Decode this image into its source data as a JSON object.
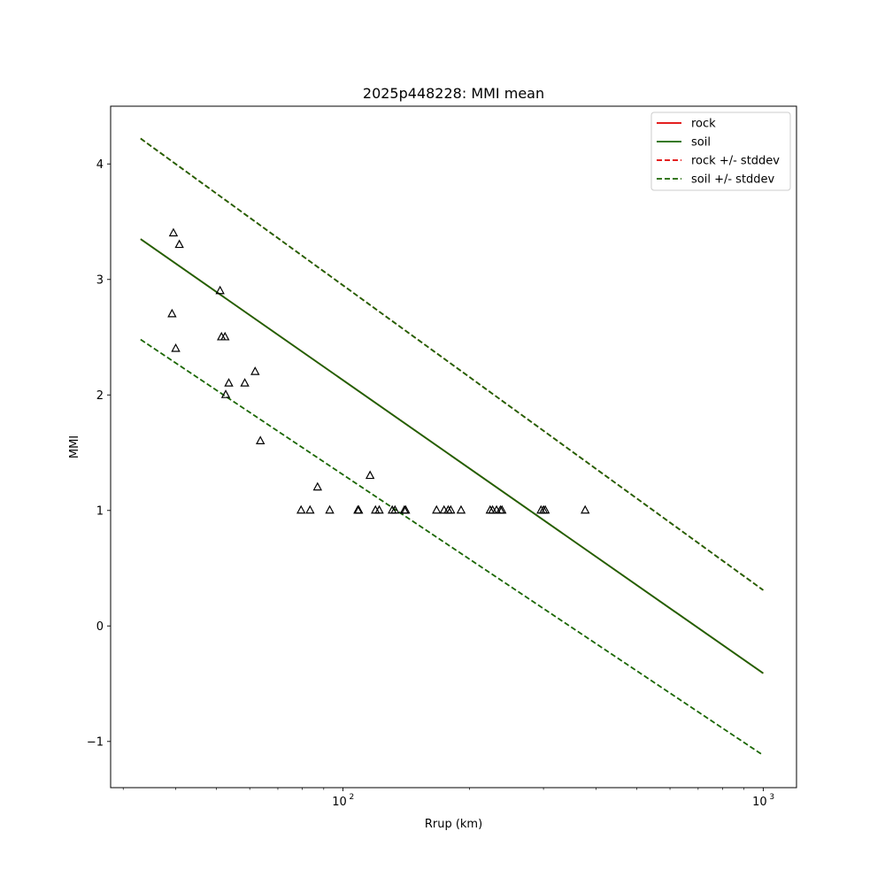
{
  "chart_data": {
    "type": "scatter",
    "title": "2025p448228: MMI mean",
    "xlabel": "Rrup (km)",
    "ylabel": "MMI",
    "xscale": "log",
    "xlim": [
      28,
      1200
    ],
    "ylim": [
      -1.4,
      4.5
    ],
    "grid": false,
    "legend_position": "top-right",
    "xticks": [
      {
        "value": 100,
        "base": "10",
        "exp": "2"
      },
      {
        "value": 1000,
        "base": "10",
        "exp": "3"
      }
    ],
    "yticks": [
      {
        "value": -1,
        "label": "−1"
      },
      {
        "value": 0,
        "label": "0"
      },
      {
        "value": 1,
        "label": "1"
      },
      {
        "value": 2,
        "label": "2"
      },
      {
        "value": 3,
        "label": "3"
      },
      {
        "value": 4,
        "label": "4"
      }
    ],
    "lines": [
      {
        "name": "rock",
        "color": "#e00000",
        "dashed": false,
        "x": [
          33,
          1000
        ],
        "y": [
          3.35,
          -0.41
        ]
      },
      {
        "name": "soil",
        "color": "#1a6600",
        "dashed": false,
        "x": [
          33,
          1000
        ],
        "y": [
          3.35,
          -0.41
        ]
      },
      {
        "name": "rock +/- stddev",
        "color": "#e00000",
        "dashed": true,
        "x": [
          33,
          1000
        ],
        "y": [
          4.22,
          0.31
        ]
      },
      {
        "name": "soil +/- stddev",
        "color": "#1a6600",
        "dashed": true,
        "x": [
          33,
          1000
        ],
        "y": [
          4.22,
          0.31
        ]
      },
      {
        "name": "soil +/- stddev lower",
        "color": "#1a6600",
        "dashed": true,
        "x": [
          33,
          1000
        ],
        "y": [
          2.48,
          -1.12
        ]
      }
    ],
    "legend": [
      {
        "label": "rock",
        "color": "#e00000",
        "dashed": false
      },
      {
        "label": "soil",
        "color": "#1a6600",
        "dashed": false
      },
      {
        "label": "rock +/- stddev",
        "color": "#e00000",
        "dashed": true
      },
      {
        "label": "soil +/- stddev",
        "color": "#1a6600",
        "dashed": true
      }
    ],
    "observations": {
      "marker": "triangle",
      "x": [
        39.5,
        40.8,
        39.2,
        40.0,
        51.0,
        51.4,
        52.4,
        52.6,
        53.5,
        58.4,
        61.8,
        63.6,
        79.5,
        83.5,
        87.0,
        93.0,
        108.5,
        109.0,
        116.0,
        119.5,
        122.0,
        131.0,
        133.0,
        140.0,
        141.0,
        167.0,
        174.0,
        178.0,
        180.5,
        191.0,
        224.0,
        227.0,
        232.0,
        237.0,
        239.0,
        296.0,
        300.0,
        303.0,
        377.0
      ],
      "y": [
        3.4,
        3.3,
        2.7,
        2.4,
        2.9,
        2.5,
        2.5,
        2.0,
        2.1,
        2.1,
        2.2,
        1.6,
        1.0,
        1.0,
        1.2,
        1.0,
        1.0,
        1.0,
        1.3,
        1.0,
        1.0,
        1.0,
        1.0,
        1.0,
        1.0,
        1.0,
        1.0,
        1.0,
        1.0,
        1.0,
        1.0,
        1.0,
        1.0,
        1.0,
        1.0,
        1.0,
        1.0,
        1.0,
        1.0
      ]
    }
  }
}
